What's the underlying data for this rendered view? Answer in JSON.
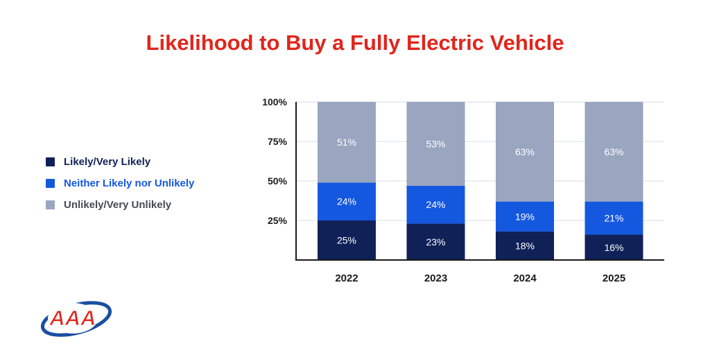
{
  "colors": {
    "title": "#e1251b",
    "likely": "#0f2157",
    "neither": "#1558e0",
    "unlikely": "#9aa5bf",
    "axis": "#1a1a1a",
    "grid": "#d9dde6"
  },
  "logo": {
    "text": "AAA",
    "icon": "aaa-logo"
  },
  "chart_data": {
    "type": "bar",
    "stacked": true,
    "title": "Likelihood to Buy a Fully Electric Vehicle",
    "categories": [
      "2022",
      "2023",
      "2024",
      "2025"
    ],
    "series": [
      {
        "name": "Likely/Very Likely",
        "values": [
          25,
          23,
          18,
          16
        ],
        "labels": [
          "25%",
          "23%",
          "18%",
          "16%"
        ]
      },
      {
        "name": "Neither Likely nor Unlikely",
        "values": [
          24,
          24,
          19,
          21
        ],
        "labels": [
          "24%",
          "24%",
          "19%",
          "21%"
        ]
      },
      {
        "name": "Unlikely/Very Unlikely",
        "values": [
          51,
          53,
          63,
          63
        ],
        "labels": [
          "51%",
          "53%",
          "63%",
          "63%"
        ]
      }
    ],
    "yticks": [
      "25%",
      "50%",
      "75%",
      "100%"
    ],
    "ylim": [
      0,
      100
    ],
    "grid": true,
    "legend": "left"
  }
}
